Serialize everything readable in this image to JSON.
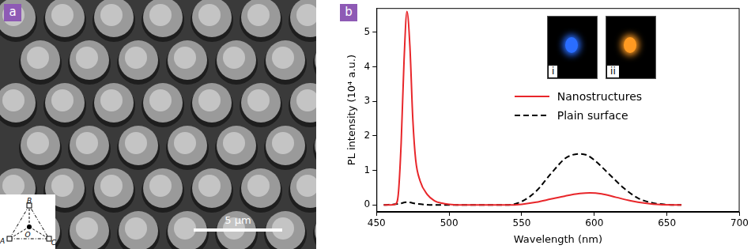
{
  "panel_a": {
    "label": "a",
    "scale_bar": "5 μm",
    "inset_labels": [
      "A",
      "B",
      "C",
      "O"
    ]
  },
  "chart_data": {
    "type": "line",
    "panel_label": "b",
    "x_label": "Wavelength (nm)",
    "y_label": "PL intensity (10⁴ a.u.)",
    "xlim": [
      450,
      700
    ],
    "xticks": [
      450,
      500,
      550,
      600,
      650,
      700
    ],
    "ylim": [
      -0.2,
      5.7
    ],
    "yticks": [
      0,
      1,
      2,
      3,
      4,
      5
    ],
    "grid": false,
    "legend": "right",
    "series": [
      {
        "name": "Nanostructures",
        "color": "#e8262a",
        "line_style": "solid",
        "x": [
          455,
          460,
          463,
          465,
          467,
          469,
          471,
          473,
          475,
          477,
          480,
          485,
          490,
          495,
          500,
          510,
          520,
          530,
          540,
          550,
          560,
          570,
          580,
          590,
          597,
          605,
          615,
          625,
          635,
          645,
          660
        ],
        "values": [
          0,
          0,
          0.02,
          0.3,
          1.8,
          4.2,
          5.6,
          4.6,
          2.5,
          1.3,
          0.7,
          0.3,
          0.12,
          0.05,
          0.02,
          0,
          0,
          0,
          0,
          0.02,
          0.08,
          0.17,
          0.26,
          0.33,
          0.35,
          0.32,
          0.22,
          0.12,
          0.05,
          0.01,
          0
        ]
      },
      {
        "name": "Plain surface",
        "color": "#000000",
        "line_style": "dashed",
        "x": [
          455,
          465,
          471,
          478,
          490,
          540,
          550,
          560,
          570,
          580,
          585,
          590,
          595,
          600,
          610,
          620,
          630,
          640,
          650,
          660
        ],
        "values": [
          0,
          0.03,
          0.08,
          0.03,
          0,
          0,
          0.1,
          0.4,
          0.9,
          1.35,
          1.45,
          1.48,
          1.44,
          1.3,
          0.9,
          0.5,
          0.2,
          0.06,
          0.01,
          0
        ]
      }
    ],
    "insets": [
      {
        "label": "i",
        "color": "#2a6dff"
      },
      {
        "label": "ii",
        "color": "#ff9a22"
      }
    ]
  }
}
